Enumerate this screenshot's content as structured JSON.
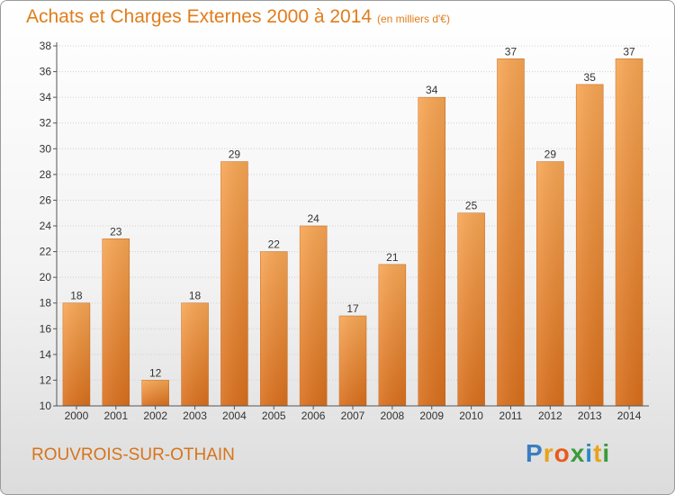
{
  "header": {
    "title": "Achats et Charges Externes 2000 à 2014",
    "subtitle": "(en milliers d'€)"
  },
  "footer": {
    "town": "ROUVROIS-SUR-OTHAIN",
    "logo_text": "Proxiti",
    "logo_letters": [
      "P",
      "r",
      "o",
      "x",
      "i",
      "t",
      "i"
    ],
    "logo_colors": [
      "#3a7dc1",
      "#e8a31c",
      "#e85a1c",
      "#3a9a3a",
      "#2a8ac8",
      "#e8a31c",
      "#3a9a3a"
    ]
  },
  "colors": {
    "bar_top": "#f7a654",
    "bar_bottom": "#d96f1c",
    "text": "#333333",
    "accent": "#e07d1c"
  },
  "chart_data": {
    "type": "bar",
    "title": "Achats et Charges Externes 2000 à 2014",
    "subtitle": "(en milliers d'€)",
    "categories": [
      "2000",
      "2001",
      "2002",
      "2003",
      "2004",
      "2005",
      "2006",
      "2007",
      "2008",
      "2009",
      "2010",
      "2011",
      "2012",
      "2013",
      "2014"
    ],
    "values": [
      18,
      23,
      12,
      18,
      29,
      22,
      24,
      17,
      21,
      34,
      25,
      37,
      29,
      35,
      37
    ],
    "ylim": [
      10,
      38
    ],
    "yticks": [
      10,
      12,
      14,
      16,
      18,
      20,
      22,
      24,
      26,
      28,
      30,
      32,
      34,
      36,
      38
    ],
    "grid": true,
    "data_labels": true
  }
}
